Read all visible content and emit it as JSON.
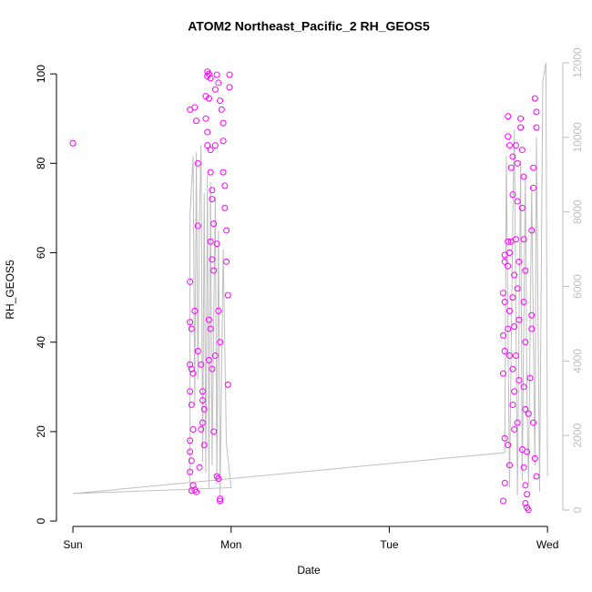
{
  "chart_data": {
    "type": "scatter",
    "title": "ATOM2 Northeast_Pacific_2 RH_GEOS5",
    "x_label": "Date",
    "y_label": "RH_GEOS5",
    "xlim": [
      -0.104,
      3.097
    ],
    "xticks": [
      {
        "value": 0,
        "label": "Sun"
      },
      {
        "value": 1,
        "label": "Mon"
      },
      {
        "value": 2,
        "label": "Tue"
      },
      {
        "value": 3,
        "label": "Wed"
      }
    ],
    "ylim": [
      -1.2,
      104.3
    ],
    "yticks": [
      0,
      20,
      40,
      60,
      80,
      100
    ],
    "y2lim": [
      -440,
      12220
    ],
    "y2ticks": [
      0,
      2000,
      4000,
      6000,
      8000,
      10000,
      12000
    ],
    "y2_color": "#bebebe",
    "series": [
      {
        "type": "line",
        "axis": "y2",
        "color": "#bebebe",
        "x": [
          0.74,
          0.74,
          0.76,
          0.77,
          0.78,
          0.79,
          0.8,
          0.81,
          0.82,
          0.83,
          0.84,
          0.85,
          0.86,
          0.87,
          0.88,
          0.89,
          0.9,
          0.91,
          0.92,
          0.93,
          0.95,
          0.97,
          1.0,
          0,
          2.73,
          2.74,
          2.76,
          2.78,
          2.79,
          2.81,
          2.83,
          2.84,
          2.86,
          2.87,
          2.88,
          2.9,
          2.92,
          2.93,
          2.95,
          2.97,
          2.99,
          3.0
        ],
        "values": [
          500,
          7900,
          9500,
          2800,
          9600,
          3500,
          7900,
          9800,
          1300,
          8500,
          1000,
          9000,
          600,
          8800,
          1200,
          5100,
          8400,
          700,
          7500,
          400,
          7000,
          1800,
          600,
          440,
          1540,
          9500,
          600,
          7700,
          10200,
          400,
          9400,
          800,
          9000,
          3000,
          700,
          8700,
          1200,
          10000,
          500,
          11500,
          12000,
          900
        ]
      },
      {
        "type": "scatter",
        "color": "#ff00ff",
        "x": [
          0,
          0.74,
          0.74,
          0.75,
          0.74,
          0.75,
          0.76,
          0.74,
          0.75,
          0.76,
          0.74,
          0.74,
          0.75,
          0.74,
          0.76,
          0.77,
          0.78,
          0.75,
          0.74,
          0.77,
          0.78,
          0.79,
          0.79,
          0.77,
          0.79,
          0.81,
          0.82,
          0.82,
          0.83,
          0.82,
          0.81,
          0.83,
          0.8,
          0.84,
          0.85,
          0.85,
          0.86,
          0.87,
          0.86,
          0.84,
          0.85,
          0.85,
          0.87,
          0.87,
          0.88,
          0.88,
          0.89,
          0.87,
          0.88,
          0.89,
          0.86,
          0.87,
          0.86,
          0.9,
          0.88,
          0.91,
          0.92,
          0.93,
          0.93,
          0.92,
          0.93,
          0.94,
          0.95,
          0.95,
          0.95,
          0.96,
          0.96,
          0.97,
          0.97,
          0.98,
          0.98,
          0.99,
          0.99,
          0.91,
          0.9,
          0.89,
          0.9,
          0.91,
          0.92,
          0.93,
          2.73,
          2.73,
          2.72,
          2.73,
          2.72,
          2.73,
          2.72,
          2.73,
          2.73,
          2.72,
          2.75,
          2.75,
          2.76,
          2.75,
          2.76,
          2.75,
          2.76,
          2.75,
          2.76,
          2.75,
          2.76,
          2.77,
          2.78,
          2.78,
          2.77,
          2.79,
          2.78,
          2.79,
          2.78,
          2.79,
          2.78,
          2.79,
          2.8,
          2.81,
          2.81,
          2.8,
          2.82,
          2.81,
          2.82,
          2.8,
          2.82,
          2.81,
          2.83,
          2.83,
          2.84,
          2.85,
          2.84,
          2.85,
          2.86,
          2.85,
          2.86,
          2.85,
          2.86,
          2.84,
          2.85,
          2.86,
          2.87,
          2.86,
          2.87,
          2.88,
          2.87,
          2.88,
          2.89,
          2.9,
          2.9,
          2.91,
          2.91,
          2.92,
          2.93,
          2.93,
          2.91,
          2.92,
          2.93,
          2.9
        ],
        "values": [
          84.5,
          53.5,
          44.5,
          43,
          35,
          34,
          33,
          29,
          26,
          20.5,
          18,
          15.5,
          13.5,
          11,
          8,
          7,
          6.5,
          6.8,
          92,
          92.5,
          89.5,
          80,
          66,
          47,
          38,
          35,
          29,
          27,
          25,
          22,
          20.5,
          17,
          12,
          95,
          99.5,
          100.5,
          100,
          99,
          94.5,
          90,
          87,
          84,
          83,
          78,
          74,
          72,
          66.5,
          62.5,
          58.5,
          56,
          45,
          43,
          36,
          37,
          34,
          10,
          9.5,
          5,
          4.5,
          98,
          94,
          92,
          89,
          85,
          78,
          75,
          70,
          65,
          58,
          50.5,
          30.5,
          99.8,
          97,
          99.8,
          96.5,
          20,
          84,
          62,
          47,
          40,
          59.5,
          58,
          51,
          49,
          41.5,
          38,
          33,
          18.5,
          8.5,
          4.5,
          90.5,
          86,
          84,
          62.5,
          60,
          57,
          47,
          43,
          37,
          17,
          12.5,
          79,
          81.5,
          73,
          62.5,
          55,
          50,
          43.5,
          34,
          29,
          26,
          20.5,
          84,
          80,
          71.5,
          63,
          58,
          52,
          45,
          37,
          31.5,
          22,
          90,
          88,
          83,
          77,
          70,
          63,
          56,
          49,
          40,
          30,
          25,
          16,
          12,
          8,
          6,
          4,
          3,
          2.5,
          15.5,
          24,
          32,
          46,
          65,
          79,
          74.5,
          94.5,
          91.5,
          88,
          22,
          14,
          10,
          43
        ]
      }
    ]
  }
}
